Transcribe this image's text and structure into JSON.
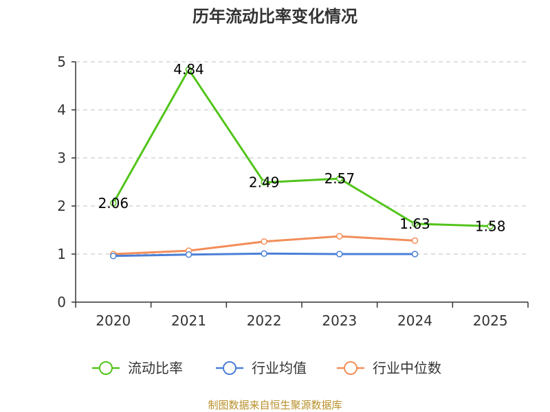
{
  "chart_data": {
    "type": "line",
    "title": "历年流动比率变化情况",
    "categories": [
      "2020",
      "2021",
      "2022",
      "2023",
      "2024",
      "2025"
    ],
    "ylim": [
      0,
      5
    ],
    "yticks": [
      "0",
      "1",
      "2",
      "3",
      "4",
      "5"
    ],
    "grid": true,
    "legend_position": "bottom",
    "series": [
      {
        "name": "流动比率",
        "color": "#52c41a",
        "values": [
          2.06,
          4.84,
          2.49,
          2.57,
          1.63,
          1.58
        ],
        "labels": [
          "2.06",
          "4.84",
          "2.49",
          "2.57",
          "1.63",
          "1.58"
        ],
        "show_labels": true
      },
      {
        "name": "行业均值",
        "color": "#4a7fd6",
        "values": [
          0.96,
          0.99,
          1.01,
          1.0,
          1.0,
          null
        ],
        "show_labels": false
      },
      {
        "name": "行业中位数",
        "color": "#f28e5a",
        "values": [
          1.0,
          1.07,
          1.26,
          1.37,
          1.28,
          null
        ],
        "show_labels": false
      }
    ],
    "source": "制图数据来自恒生聚源数据库"
  }
}
